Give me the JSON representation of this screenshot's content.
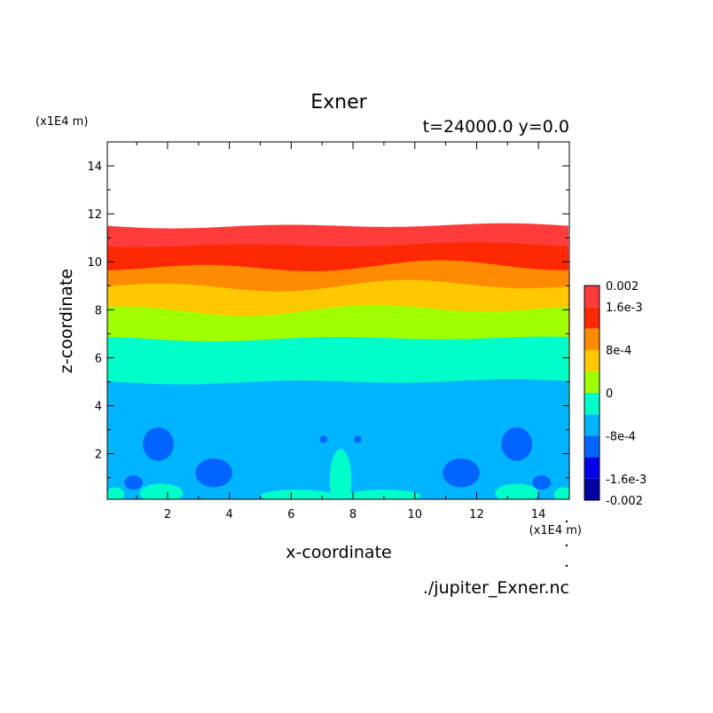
{
  "chart_data": {
    "type": "heatmap",
    "title": "Exner",
    "subtitle": "t=24000.0 y=0.0",
    "xlabel": "x-coordinate",
    "ylabel": "z-coordinate",
    "x_unit": "(x1E4 m)",
    "y_unit": "(x1E4 m)",
    "source_file": "./jupiter_Exner.nc",
    "xlim": [
      0.05,
      15
    ],
    "ylim": [
      0.1,
      15
    ],
    "x_ticks": [
      2,
      4,
      6,
      8,
      10,
      12,
      14
    ],
    "y_ticks": [
      2,
      4,
      6,
      8,
      10,
      12,
      14
    ],
    "grid": false,
    "colorbar": {
      "labels": [
        "0.002",
        "1.6e-3",
        "8e-4",
        "0",
        "-8e-4",
        "-1.6e-3",
        "-0.002"
      ],
      "label_values": [
        0.002,
        0.0016,
        0.0008,
        0,
        -0.0008,
        -0.0016,
        -0.002
      ],
      "levels": [
        -0.002,
        -0.0016,
        -0.0012,
        -0.0008,
        -0.0004,
        0,
        0.0004,
        0.0008,
        0.0012,
        0.0016,
        0.002
      ],
      "colors": [
        "#0000a0",
        "#0000e8",
        "#0064ff",
        "#00b4ff",
        "#00ffc8",
        "#a0ff00",
        "#ffc800",
        "#ff8c00",
        "#ff2800",
        "#ff3c3c"
      ]
    },
    "bands": [
      {
        "color": "#ff3c3c",
        "z_top": 11.5
      },
      {
        "color": "#ff2800",
        "z_top": 10.7
      },
      {
        "color": "#ff8c00",
        "z_top": 9.8
      },
      {
        "color": "#ffc800",
        "z_top": 9.0
      },
      {
        "color": "#a0ff00",
        "z_top": 8.0
      },
      {
        "color": "#00ffc8",
        "z_top": 6.8
      },
      {
        "color": "#00b4ff",
        "z_top": 5.0
      }
    ],
    "cells": [
      {
        "color": "#0064ff",
        "x": 1.7,
        "z": 2.4,
        "rx": 0.5,
        "rz": 0.7
      },
      {
        "color": "#0064ff",
        "x": 3.5,
        "z": 1.2,
        "rx": 0.6,
        "rz": 0.6
      },
      {
        "color": "#0064ff",
        "x": 0.9,
        "z": 0.8,
        "rx": 0.3,
        "rz": 0.3
      },
      {
        "color": "#0064ff",
        "x": 13.3,
        "z": 2.4,
        "rx": 0.5,
        "rz": 0.7
      },
      {
        "color": "#0064ff",
        "x": 11.5,
        "z": 1.2,
        "rx": 0.6,
        "rz": 0.6
      },
      {
        "color": "#0064ff",
        "x": 14.1,
        "z": 0.8,
        "rx": 0.3,
        "rz": 0.3
      },
      {
        "color": "#0064ff",
        "x": 7.05,
        "z": 2.6,
        "rx": 0.12,
        "rz": 0.15
      },
      {
        "color": "#0064ff",
        "x": 8.15,
        "z": 2.6,
        "rx": 0.12,
        "rz": 0.15
      },
      {
        "color": "#00ffc8",
        "x": 7.6,
        "z": 0.9,
        "rx": 0.35,
        "rz": 1.3
      },
      {
        "color": "#00ffc8",
        "x": 6.2,
        "z": 0.25,
        "rx": 1.2,
        "rz": 0.25
      },
      {
        "color": "#00ffc8",
        "x": 9.0,
        "z": 0.25,
        "rx": 1.2,
        "rz": 0.25
      },
      {
        "color": "#00ffc8",
        "x": 1.8,
        "z": 0.35,
        "rx": 0.7,
        "rz": 0.4
      },
      {
        "color": "#00ffc8",
        "x": 13.3,
        "z": 0.35,
        "rx": 0.7,
        "rz": 0.4
      },
      {
        "color": "#00ffc8",
        "x": 0.3,
        "z": 0.3,
        "rx": 0.3,
        "rz": 0.3
      },
      {
        "color": "#00ffc8",
        "x": 14.8,
        "z": 0.3,
        "rx": 0.3,
        "rz": 0.3
      }
    ]
  }
}
